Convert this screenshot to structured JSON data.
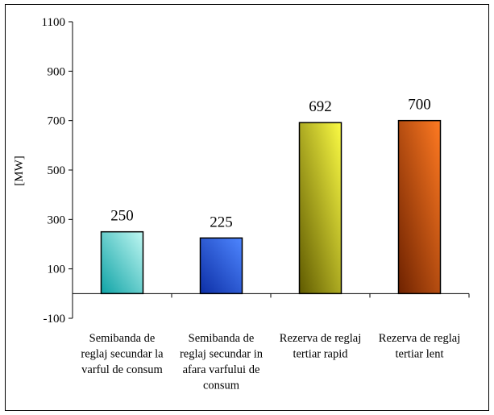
{
  "chart_data": {
    "type": "bar",
    "categories": [
      [
        "Semibanda de",
        "reglaj secundar la",
        "varful de consum"
      ],
      [
        "Semibanda de",
        "reglaj secundar in",
        "afara varfului de",
        "consum"
      ],
      [
        "Rezerva de reglaj",
        "tertiar rapid"
      ],
      [
        "Rezerva de reglaj",
        "tertiar lent"
      ]
    ],
    "values": [
      250,
      225,
      692,
      700
    ],
    "value_labels": [
      "250",
      "225",
      "692",
      "700"
    ],
    "ylabel": "[MW]",
    "ylim": [
      -100,
      1100
    ],
    "yticks": [
      -100,
      100,
      300,
      500,
      700,
      900,
      1100
    ],
    "ytick_labels": [
      "-100",
      "100",
      "300",
      "500",
      "700",
      "900",
      "1100"
    ],
    "bar_colors": [
      [
        "#0fa3a6",
        "#bff7f2"
      ],
      [
        "#0d2fa6",
        "#4e86ff"
      ],
      [
        "#5f5a00",
        "#fbfb44"
      ],
      [
        "#6e2200",
        "#ff7a22"
      ]
    ],
    "grid": false,
    "legend": "none"
  }
}
